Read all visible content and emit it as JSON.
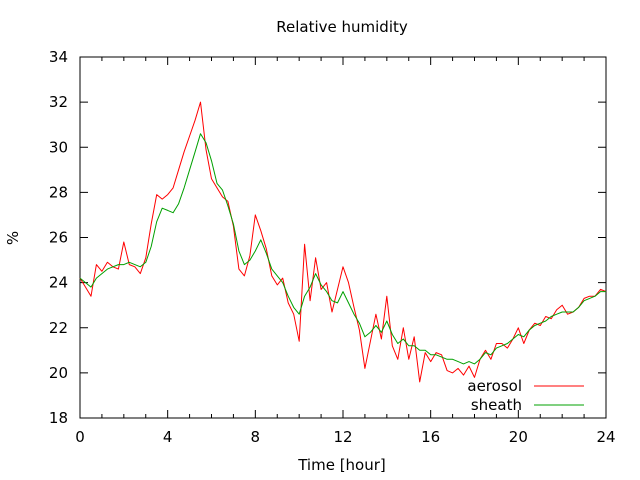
{
  "chart_data": {
    "type": "line",
    "title": "Relative humidity",
    "xlabel": "Time [hour]",
    "ylabel": "%",
    "xlim": [
      0,
      24
    ],
    "ylim": [
      18,
      34
    ],
    "xticks": [
      0,
      4,
      8,
      12,
      16,
      20,
      24
    ],
    "yticks": [
      18,
      20,
      22,
      24,
      26,
      28,
      30,
      32,
      34
    ],
    "grid": false,
    "legend_position": "bottom-right",
    "series": [
      {
        "name": "aerosol",
        "color": "#ff0000",
        "x": [
          0,
          0.25,
          0.5,
          0.75,
          1,
          1.25,
          1.5,
          1.75,
          2,
          2.25,
          2.5,
          2.75,
          3,
          3.25,
          3.5,
          3.75,
          4,
          4.25,
          4.5,
          4.75,
          5,
          5.25,
          5.5,
          5.75,
          6,
          6.25,
          6.5,
          6.75,
          7,
          7.25,
          7.5,
          7.75,
          8,
          8.25,
          8.5,
          8.75,
          9,
          9.25,
          9.5,
          9.75,
          10,
          10.25,
          10.5,
          10.75,
          11,
          11.25,
          11.5,
          11.75,
          12,
          12.25,
          12.5,
          12.75,
          13,
          13.25,
          13.5,
          13.75,
          14,
          14.25,
          14.5,
          14.75,
          15,
          15.25,
          15.5,
          15.75,
          16,
          16.25,
          16.5,
          16.75,
          17,
          17.25,
          17.5,
          17.75,
          18,
          18.25,
          18.5,
          18.75,
          19,
          19.25,
          19.5,
          19.75,
          20,
          20.25,
          20.5,
          20.75,
          21,
          21.25,
          21.5,
          21.75,
          22,
          22.25,
          22.5,
          22.75,
          23,
          23.25,
          23.5,
          23.75,
          24
        ],
        "values": [
          24.2,
          23.8,
          23.4,
          24.8,
          24.5,
          24.9,
          24.7,
          24.6,
          25.8,
          24.8,
          24.7,
          24.4,
          25.1,
          26.6,
          27.9,
          27.7,
          27.9,
          28.2,
          29.0,
          29.8,
          30.5,
          31.2,
          32.0,
          29.9,
          28.6,
          28.2,
          27.8,
          27.6,
          26.5,
          24.6,
          24.3,
          25.2,
          27.0,
          26.3,
          25.5,
          24.3,
          23.9,
          24.2,
          23.1,
          22.6,
          21.4,
          25.7,
          23.2,
          25.1,
          23.7,
          24.0,
          22.7,
          23.7,
          24.7,
          24.0,
          22.9,
          21.9,
          20.2,
          21.4,
          22.6,
          21.5,
          23.4,
          21.2,
          20.6,
          22.0,
          20.6,
          21.6,
          19.6,
          20.9,
          20.5,
          20.9,
          20.8,
          20.1,
          20.0,
          20.2,
          19.9,
          20.3,
          19.8,
          20.6,
          21.0,
          20.6,
          21.3,
          21.3,
          21.1,
          21.5,
          22.0,
          21.3,
          21.9,
          22.2,
          22.1,
          22.5,
          22.4,
          22.8,
          23.0,
          22.6,
          22.7,
          22.9,
          23.3,
          23.4,
          23.4,
          23.7,
          23.6
        ]
      },
      {
        "name": "sheath",
        "color": "#00a000",
        "x": [
          0,
          0.25,
          0.5,
          0.75,
          1,
          1.25,
          1.5,
          1.75,
          2,
          2.25,
          2.5,
          2.75,
          3,
          3.25,
          3.5,
          3.75,
          4,
          4.25,
          4.5,
          4.75,
          5,
          5.25,
          5.5,
          5.75,
          6,
          6.25,
          6.5,
          6.75,
          7,
          7.25,
          7.5,
          7.75,
          8,
          8.25,
          8.5,
          8.75,
          9,
          9.25,
          9.5,
          9.75,
          10,
          10.25,
          10.5,
          10.75,
          11,
          11.25,
          11.5,
          11.75,
          12,
          12.25,
          12.5,
          12.75,
          13,
          13.25,
          13.5,
          13.75,
          14,
          14.25,
          14.5,
          14.75,
          15,
          15.25,
          15.5,
          15.75,
          16,
          16.25,
          16.5,
          16.75,
          17,
          17.25,
          17.5,
          17.75,
          18,
          18.25,
          18.5,
          18.75,
          19,
          19.25,
          19.5,
          19.75,
          20,
          20.25,
          20.5,
          20.75,
          21,
          21.25,
          21.5,
          21.75,
          22,
          22.25,
          22.5,
          22.75,
          23,
          23.25,
          23.5,
          23.75,
          24
        ],
        "values": [
          24.2,
          24.0,
          23.8,
          24.2,
          24.4,
          24.6,
          24.7,
          24.8,
          24.8,
          24.9,
          24.8,
          24.7,
          24.9,
          25.6,
          26.7,
          27.3,
          27.2,
          27.1,
          27.5,
          28.2,
          29.0,
          29.8,
          30.6,
          30.2,
          29.4,
          28.4,
          28.1,
          27.4,
          26.6,
          25.4,
          24.8,
          25.0,
          25.4,
          25.9,
          25.3,
          24.6,
          24.3,
          24.0,
          23.4,
          22.9,
          22.6,
          23.4,
          23.8,
          24.4,
          23.9,
          23.6,
          23.2,
          23.1,
          23.6,
          23.1,
          22.6,
          22.2,
          21.6,
          21.8,
          22.1,
          21.8,
          22.3,
          21.7,
          21.3,
          21.5,
          21.2,
          21.2,
          21.0,
          21.0,
          20.8,
          20.8,
          20.7,
          20.6,
          20.6,
          20.5,
          20.4,
          20.5,
          20.4,
          20.6,
          20.9,
          20.8,
          21.1,
          21.2,
          21.3,
          21.5,
          21.7,
          21.6,
          21.9,
          22.1,
          22.2,
          22.3,
          22.5,
          22.6,
          22.7,
          22.7,
          22.7,
          22.9,
          23.2,
          23.3,
          23.4,
          23.6,
          23.6
        ]
      }
    ]
  }
}
